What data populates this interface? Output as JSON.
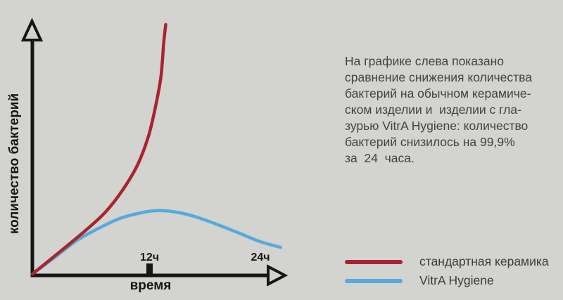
{
  "info": {
    "lines": [
      "На графике слева показано",
      "сравнение снижения количества",
      "бактерий на обычном керамиче-",
      "ском изделии и  изделии с гла-",
      "зурью VitrA Hygiene: количество",
      "бактерий снизилось на 99,9%",
      "за  24  часа."
    ]
  },
  "chart_data": {
    "type": "line",
    "title": "",
    "xlabel": "время",
    "ylabel": "количество бактерий",
    "x_unit": "hours",
    "y_unit": "relative bacteria count (peak of red curve = 100)",
    "xlim": [
      0,
      26
    ],
    "ylim": [
      0,
      100
    ],
    "grid": false,
    "legend_position": "bottom-right",
    "xticks": [
      {
        "label": "12ч",
        "hours": 12,
        "has_mark": true
      },
      {
        "label": "24ч",
        "hours": 24,
        "has_mark": false
      }
    ],
    "series": [
      {
        "id": "hygiene",
        "name": "VitrA Hygiene",
        "color": "#57aad9",
        "x": [
          0,
          2.5,
          4.6,
          6.8,
          9.0,
          11.1,
          12.9,
          14.8,
          16.9,
          19.1,
          21.3,
          23.4,
          25.5
        ],
        "values": [
          0,
          7.3,
          13.5,
          18.3,
          22.3,
          24.5,
          25.4,
          24.8,
          22.8,
          19.7,
          16.3,
          13.0,
          10.7
        ]
      },
      {
        "id": "standard",
        "name": "стандартная керамика",
        "color": "#a92430",
        "x": [
          0,
          2.5,
          5.3,
          7.5,
          9.3,
          10.8,
          11.9,
          12.6,
          13.2,
          13.5,
          13.7
        ],
        "values": [
          0,
          7.9,
          16.9,
          24.8,
          33.8,
          43.7,
          54.9,
          66.2,
          78.9,
          93,
          100
        ]
      }
    ]
  },
  "colors": {
    "background": "#d3d3cf",
    "axis": "#161616",
    "body_text": "#434341"
  }
}
